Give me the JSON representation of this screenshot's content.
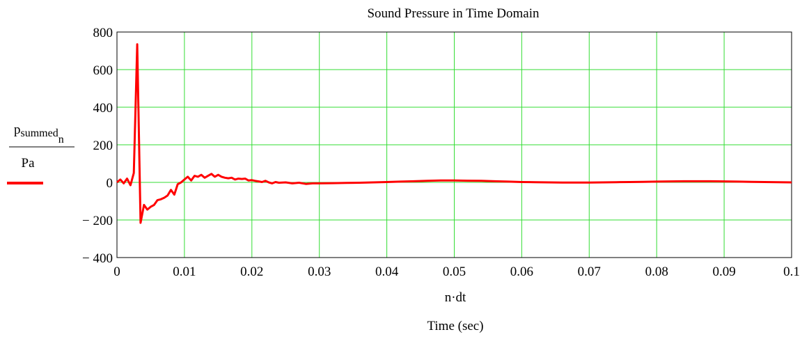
{
  "chart_data": {
    "type": "line",
    "title": "Sound Pressure in Time Domain",
    "xlabel": "n·dt",
    "xlabel_sub": "Time (sec)",
    "ylabel_numerator": "p",
    "ylabel_numerator_subscript": "summed",
    "ylabel_numerator_subsubscript": "n",
    "ylabel_denominator": "Pa",
    "xlim": [
      0,
      0.1
    ],
    "ylim": [
      -400,
      800
    ],
    "x_ticks": [
      0,
      0.01,
      0.02,
      0.03,
      0.04,
      0.05,
      0.06,
      0.07,
      0.08,
      0.09,
      0.1
    ],
    "x_tick_labels": [
      "0",
      "0.01",
      "0.02",
      "0.03",
      "0.04",
      "0.05",
      "0.06",
      "0.07",
      "0.08",
      "0.09",
      "0.1"
    ],
    "y_ticks": [
      -400,
      -200,
      0,
      200,
      400,
      600,
      800
    ],
    "y_tick_labels": [
      "− 400",
      "− 200",
      "0",
      "200",
      "400",
      "600",
      "800"
    ],
    "grid": true,
    "grid_color": "#33dd33",
    "series": [
      {
        "color": "#ff0000",
        "x": [
          0,
          0.0005,
          0.001,
          0.0015,
          0.002,
          0.0025,
          0.003,
          0.0035,
          0.004,
          0.0045,
          0.005,
          0.0055,
          0.006,
          0.0065,
          0.007,
          0.0075,
          0.008,
          0.0085,
          0.009,
          0.0095,
          0.01,
          0.0105,
          0.011,
          0.0115,
          0.012,
          0.0125,
          0.013,
          0.0135,
          0.014,
          0.0145,
          0.015,
          0.0155,
          0.016,
          0.0165,
          0.017,
          0.0175,
          0.018,
          0.0185,
          0.019,
          0.0195,
          0.02,
          0.0205,
          0.021,
          0.0215,
          0.022,
          0.0225,
          0.023,
          0.0235,
          0.024,
          0.025,
          0.026,
          0.027,
          0.028,
          0.029,
          0.03,
          0.032,
          0.034,
          0.036,
          0.038,
          0.04,
          0.042,
          0.044,
          0.046,
          0.048,
          0.05,
          0.052,
          0.054,
          0.056,
          0.058,
          0.06,
          0.062,
          0.064,
          0.066,
          0.068,
          0.07,
          0.072,
          0.074,
          0.076,
          0.078,
          0.08,
          0.082,
          0.084,
          0.086,
          0.088,
          0.09,
          0.092,
          0.094,
          0.096,
          0.098,
          0.1
        ],
        "y": [
          0,
          15,
          -5,
          20,
          -15,
          50,
          735,
          -215,
          -120,
          -145,
          -130,
          -120,
          -95,
          -90,
          -82,
          -70,
          -40,
          -65,
          -10,
          0,
          15,
          30,
          10,
          35,
          30,
          40,
          25,
          35,
          45,
          30,
          40,
          30,
          25,
          22,
          25,
          15,
          20,
          18,
          20,
          10,
          12,
          8,
          5,
          2,
          8,
          0,
          -5,
          2,
          -2,
          0,
          -5,
          -2,
          -8,
          -5,
          -5,
          -4,
          -3,
          -2,
          0,
          2,
          4,
          6,
          8,
          10,
          10,
          9,
          8,
          6,
          4,
          2,
          1,
          0,
          -1,
          -1,
          -1,
          0,
          1,
          2,
          3,
          4,
          5,
          6,
          6,
          6,
          5,
          4,
          3,
          2,
          1,
          0
        ]
      }
    ]
  }
}
